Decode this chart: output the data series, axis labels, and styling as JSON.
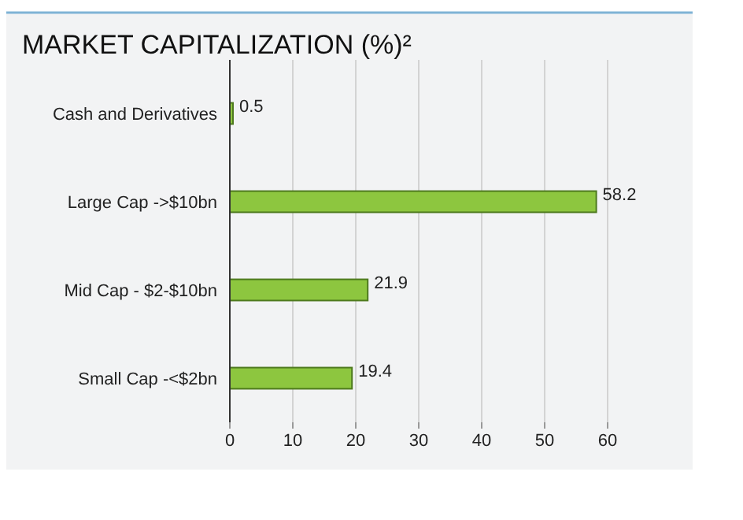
{
  "chart_data": {
    "type": "bar",
    "orientation": "horizontal",
    "title": "MARKET CAPITALIZATION (%)²",
    "categories": [
      "Cash and Derivatives",
      "Large Cap ->$10bn",
      "Mid Cap - $2-$10bn",
      "Small Cap -<$2bn"
    ],
    "values": [
      0.5,
      58.2,
      21.9,
      19.4
    ],
    "color": "#8dc63f",
    "xlim": [
      0,
      60
    ],
    "xticks": [
      0,
      10,
      20,
      30,
      40,
      50,
      60
    ],
    "grid": "x",
    "data_labels": true
  }
}
